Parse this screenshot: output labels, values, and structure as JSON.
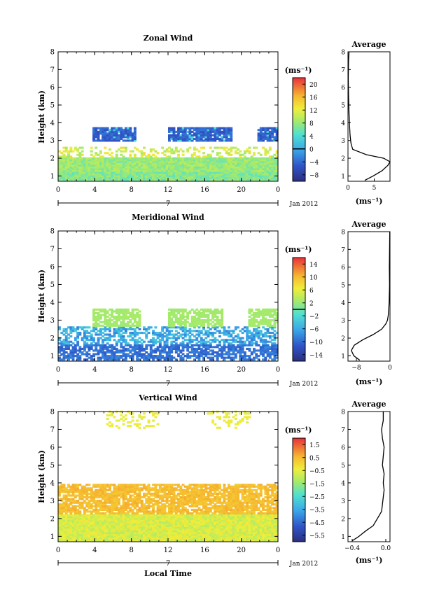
{
  "chart_data": [
    {
      "type": "heatmap",
      "title": "Zonal Wind",
      "xlabel": "",
      "ylabel": "Height (km)",
      "xlim": [
        0,
        24
      ],
      "ylim": [
        0.7,
        8.0
      ],
      "x_ticks": [
        "0",
        "4",
        "8",
        "12",
        "16",
        "20",
        "0"
      ],
      "y_ticks": [
        "1",
        "2",
        "3",
        "4",
        "5",
        "6",
        "7",
        "8"
      ],
      "date_marker": "7",
      "date_label": "Jan 2012",
      "colorbar": {
        "unit": "(ms⁻¹)",
        "ticks": [
          "20",
          "16",
          "12",
          "8",
          "4",
          "0",
          "−4",
          "−8"
        ],
        "range": [
          -10,
          22
        ],
        "zero_line": 0
      },
      "observed_range": [
        0.75,
        3.7
      ],
      "upper_echo_heights": [
        2.9,
        3.7
      ],
      "profile": {
        "title": "Average",
        "xlabel": "(ms⁻¹)",
        "x_ticks": [
          "0",
          "5"
        ],
        "xlim": [
          0,
          8
        ],
        "height": [
          0.75,
          1.0,
          1.3,
          1.6,
          1.8,
          2.0,
          2.2,
          2.5,
          2.8,
          3.0,
          3.3,
          3.8,
          4.5,
          5.5,
          6.5,
          7.5,
          8.0
        ],
        "value": [
          3.2,
          4.8,
          6.5,
          7.6,
          8.0,
          6.8,
          3.5,
          0.9,
          0.6,
          0.5,
          0.4,
          0.3,
          0.2,
          0.1,
          0.05,
          0.1,
          0.2
        ]
      }
    },
    {
      "type": "heatmap",
      "title": "Meridional Wind",
      "xlabel": "",
      "ylabel": "Height (km)",
      "xlim": [
        0,
        24
      ],
      "ylim": [
        0.7,
        8.0
      ],
      "x_ticks": [
        "0",
        "4",
        "8",
        "12",
        "16",
        "20",
        "0"
      ],
      "y_ticks": [
        "1",
        "2",
        "3",
        "4",
        "5",
        "6",
        "7",
        "8"
      ],
      "date_marker": "7",
      "date_label": "Jan 2012",
      "colorbar": {
        "unit": "(ms⁻¹)",
        "ticks": [
          "14",
          "10",
          "6",
          "2",
          "−2",
          "−6",
          "−10",
          "−14"
        ],
        "range": [
          -16,
          16
        ],
        "zero_line": 0
      },
      "observed_range": [
        0.75,
        3.7
      ],
      "upper_echo_heights": [
        2.4,
        3.6
      ],
      "profile": {
        "title": "Average",
        "xlabel": "(ms⁻¹)",
        "x_ticks": [
          "−8",
          "0"
        ],
        "xlim": [
          -10,
          0
        ],
        "height": [
          0.75,
          1.0,
          1.3,
          1.6,
          1.9,
          2.2,
          2.5,
          2.8,
          3.0,
          3.3,
          3.6,
          4.0,
          5.0,
          6.0,
          7.0,
          8.0
        ],
        "value": [
          -7.2,
          -8.6,
          -9.2,
          -8.5,
          -6.5,
          -4.0,
          -2.0,
          -1.0,
          -0.6,
          -0.4,
          -0.3,
          -0.2,
          -0.1,
          -0.15,
          -0.1,
          -0.05
        ]
      }
    },
    {
      "type": "heatmap",
      "title": "Vertical Wind",
      "xlabel": "Local Time",
      "ylabel": "Height (km)",
      "xlim": [
        0,
        24
      ],
      "ylim": [
        0.7,
        8.0
      ],
      "x_ticks": [
        "0",
        "4",
        "8",
        "12",
        "16",
        "20",
        "0"
      ],
      "y_ticks": [
        "1",
        "2",
        "3",
        "4",
        "5",
        "6",
        "7",
        "8"
      ],
      "date_marker": "7",
      "date_label": "Jan 2012",
      "colorbar": {
        "unit": "(ms⁻¹)",
        "ticks": [
          "1.5",
          "0.5",
          "−0.5",
          "−1.5",
          "−2.5",
          "−3.5",
          "−4.5",
          "−5.5"
        ],
        "range": [
          -6,
          2
        ]
      },
      "observed_range": [
        0.75,
        3.9
      ],
      "upper_echo_heights": [
        7.0,
        8.0
      ],
      "profile": {
        "title": "Average",
        "xlabel": "(ms⁻¹)",
        "x_ticks": [
          "−0.4",
          "0.0"
        ],
        "xlim": [
          -0.45,
          0.05
        ],
        "height": [
          0.75,
          1.0,
          1.3,
          1.6,
          2.0,
          2.4,
          2.8,
          3.2,
          3.6,
          4.0,
          4.5,
          5.0,
          5.5,
          6.0,
          6.5,
          7.0,
          7.5,
          8.0
        ],
        "value": [
          -0.4,
          -0.32,
          -0.24,
          -0.15,
          -0.1,
          -0.05,
          -0.04,
          -0.03,
          -0.02,
          -0.03,
          -0.02,
          -0.04,
          -0.03,
          -0.02,
          -0.04,
          -0.05,
          -0.03,
          -0.03
        ]
      }
    }
  ]
}
